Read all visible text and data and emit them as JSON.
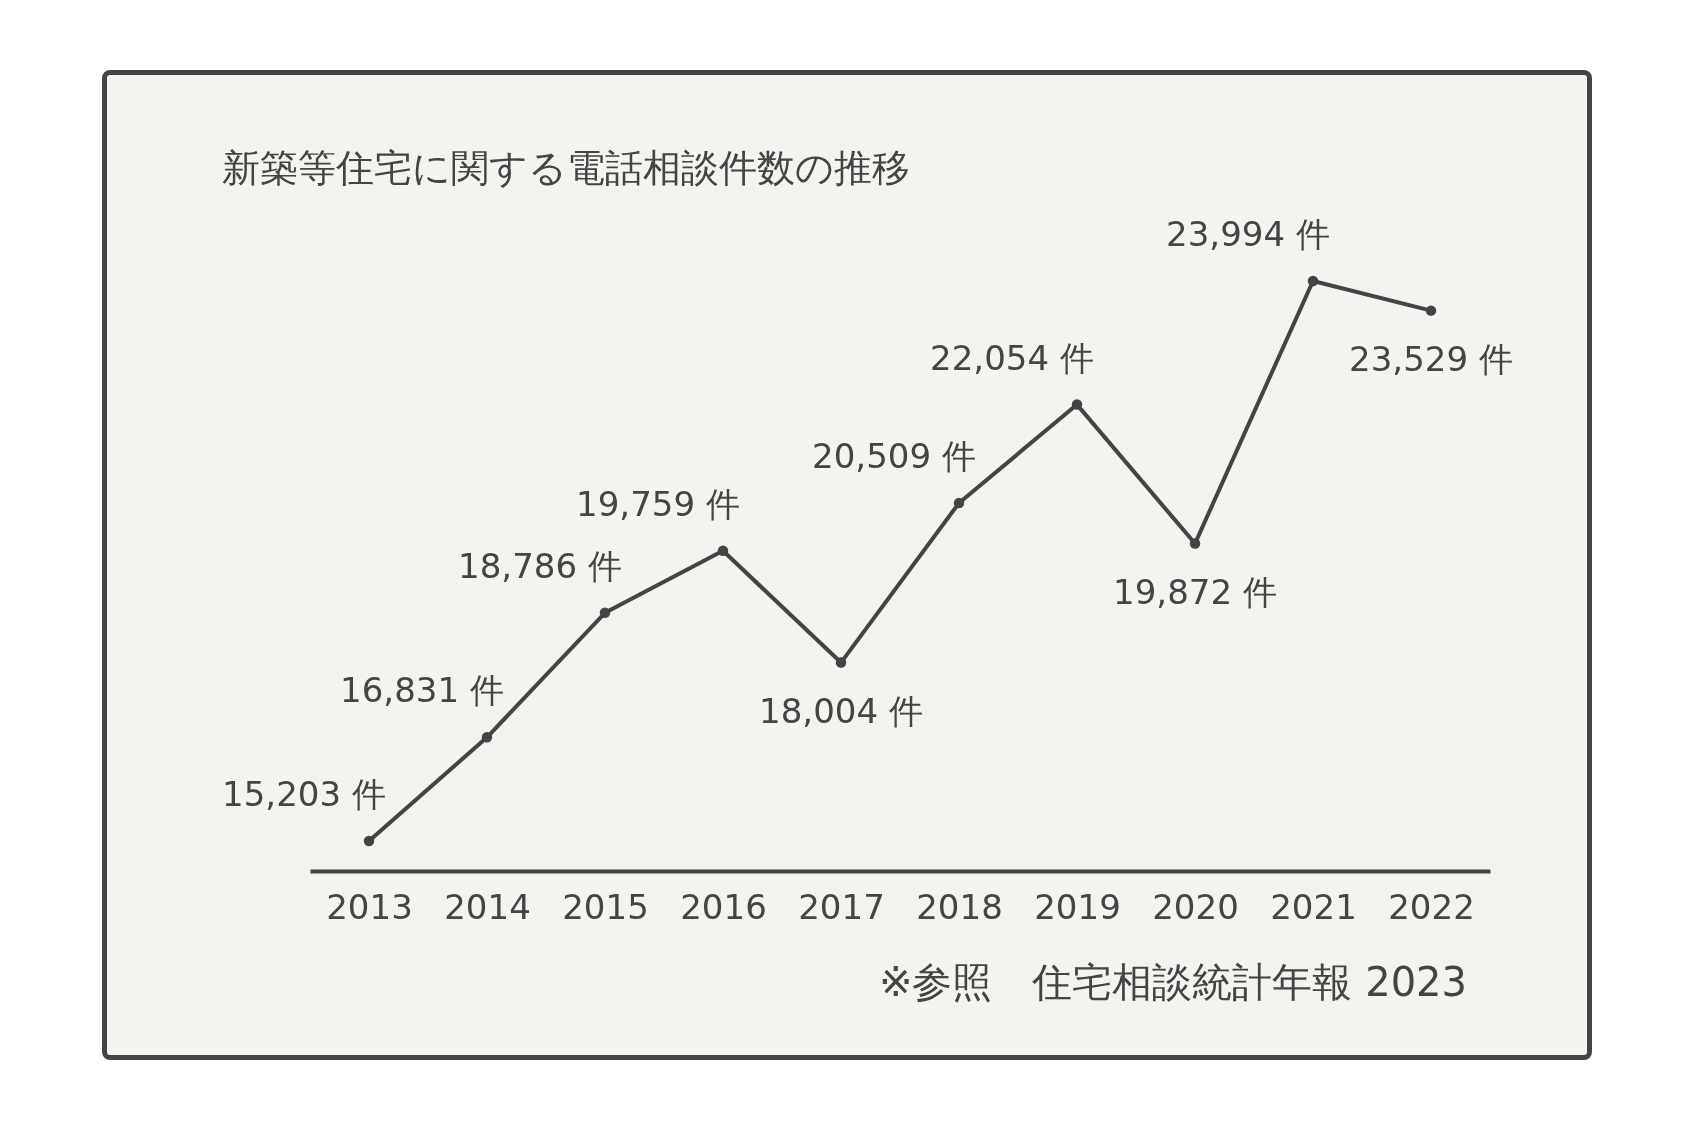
{
  "chart_data": {
    "type": "line",
    "title": "新築等住宅に関する電話相談件数の推移",
    "categories": [
      "2013",
      "2014",
      "2015",
      "2016",
      "2017",
      "2018",
      "2019",
      "2020",
      "2021",
      "2022"
    ],
    "series": [
      {
        "color": "#444444",
        "values": [
          15203,
          16831,
          18786,
          19759,
          18004,
          20509,
          22054,
          19872,
          23994,
          23529
        ],
        "value_labels": [
          "15,203 件",
          "16,831 件",
          "18,786 件",
          "19,759 件",
          "18,004 件",
          "20,509 件",
          "22,054 件",
          "19,872 件",
          "23,994 件",
          "23,529 件"
        ]
      }
    ],
    "tick_labels": "x",
    "grid": false,
    "marker": "circle",
    "line_style": "solid",
    "annotations": [
      "※参照　住宅相談統計年報 2023"
    ]
  }
}
